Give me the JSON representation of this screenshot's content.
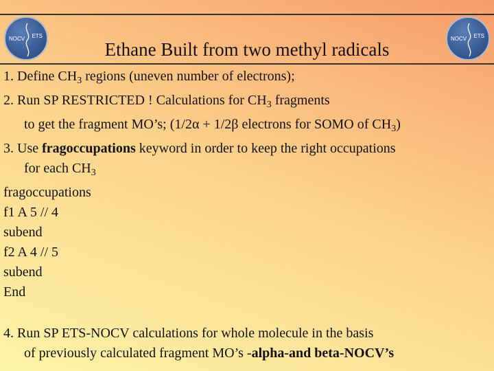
{
  "title": "Ethane Built from two methyl radicals",
  "logo_left": {
    "left": "NOCV",
    "right": "ETS"
  },
  "logo_right": {
    "left": "NOCV",
    "right": "ETS"
  },
  "lines": [
    {
      "parts": [
        {
          "text": "1. Define CH"
        },
        {
          "text": "3",
          "style": "sub"
        },
        {
          "text": " regions (uneven number of electrons);"
        }
      ]
    },
    {
      "parts": [
        {
          "text": "2. Run SP RESTRICTED ! Calculations for CH"
        },
        {
          "text": "3",
          "style": "sub"
        },
        {
          "text": " fragments"
        }
      ]
    },
    {
      "indent": true,
      "parts": [
        {
          "text": "to get the fragment MO’s; (1/2α + 1/2β electrons for SOMO of CH"
        },
        {
          "text": "3",
          "style": "sub"
        },
        {
          "text": ")"
        }
      ]
    },
    {
      "parts": [
        {
          "text": "3. Use "
        },
        {
          "text": "fragoccupations",
          "style": "bold"
        },
        {
          "text": " keyword in order to keep the right occupations"
        }
      ]
    },
    {
      "indent": true,
      "parts": [
        {
          "text": "for each CH"
        },
        {
          "text": "3",
          "style": "sub"
        }
      ]
    },
    {
      "parts": [
        {
          "text": "fragoccupations"
        }
      ]
    },
    {
      "parts": [
        {
          "text": "f1 A 5 // 4"
        }
      ]
    },
    {
      "parts": [
        {
          "text": "subend"
        }
      ]
    },
    {
      "parts": [
        {
          "text": "f2 A 4 // 5"
        }
      ]
    },
    {
      "parts": [
        {
          "text": "subend"
        }
      ]
    },
    {
      "parts": [
        {
          "text": "End"
        }
      ]
    },
    {
      "gap": true,
      "parts": [
        {
          "text": "4. Run SP ETS-NOCV calculations for whole molecule in the basis"
        }
      ]
    },
    {
      "indent": true,
      "parts": [
        {
          "text": "of previously calculated fragment MO’s -"
        },
        {
          "text": "alpha-and beta-NOCV’s",
          "style": "bold"
        }
      ]
    }
  ]
}
